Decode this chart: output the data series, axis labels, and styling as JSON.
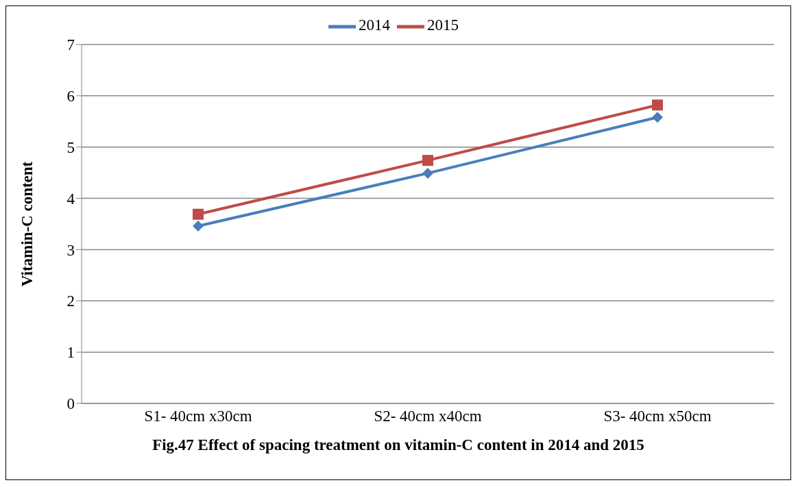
{
  "chart_data": {
    "type": "line",
    "title": "Fig.47 Effect of spacing treatment on vitamin-C content in 2014 and 2015",
    "ylabel": "Vitamin-C content",
    "categories": [
      "S1- 40cm x30cm",
      "S2- 40cm x40cm",
      "S3- 40cm x50cm"
    ],
    "series": [
      {
        "name": "2014",
        "color": "#4a7ebb",
        "values": [
          3.46,
          4.49,
          5.58
        ],
        "marker": "diamond"
      },
      {
        "name": "2015",
        "color": "#be4b48",
        "values": [
          3.69,
          4.74,
          5.82
        ],
        "marker": "square"
      }
    ],
    "ylim": [
      0,
      7
    ],
    "yticks": [
      0,
      1,
      2,
      3,
      4,
      5,
      6,
      7
    ],
    "grid": "y",
    "legend": "top",
    "line_style": "solid"
  }
}
